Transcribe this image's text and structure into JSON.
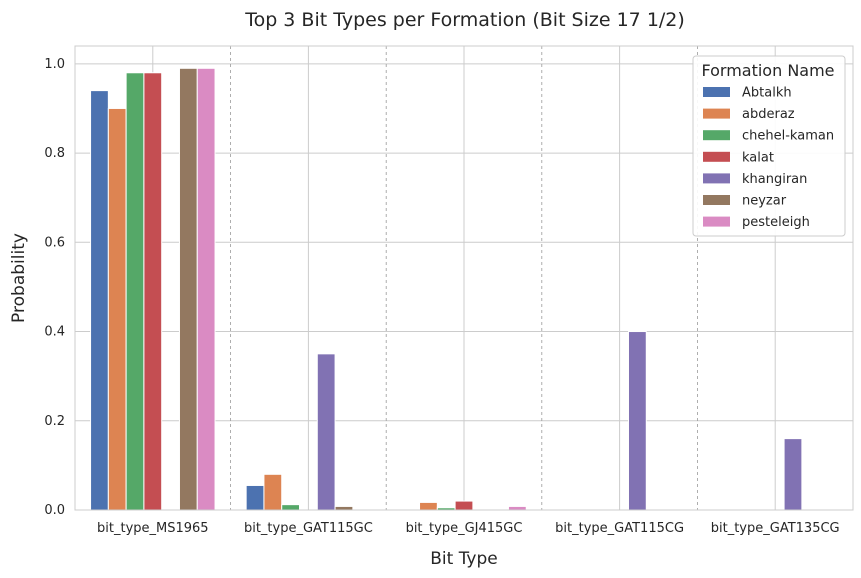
{
  "chart_data": {
    "type": "bar",
    "title": "Top 3 Bit Types per Formation (Bit Size 17 1/2)",
    "xlabel": "Bit Type",
    "ylabel": "Probability",
    "ylim": [
      0,
      1.04
    ],
    "yticks": [
      0.0,
      0.2,
      0.4,
      0.6,
      0.8,
      1.0
    ],
    "ytick_labels": [
      "0.0",
      "0.2",
      "0.4",
      "0.6",
      "0.8",
      "1.0"
    ],
    "grid": true,
    "categories": [
      "bit_type_MS1965",
      "bit_type_GAT115GC",
      "bit_type_GJ415GC",
      "bit_type_GAT115CG",
      "bit_type_GAT135CG"
    ],
    "legend": {
      "title": "Formation Name",
      "placement": "top-right"
    },
    "series": [
      {
        "name": "Abtalkh",
        "color": "#4c72b0",
        "values": [
          0.94,
          0.055,
          0.0,
          0.0,
          0.0
        ]
      },
      {
        "name": "abderaz",
        "color": "#dd8452",
        "values": [
          0.9,
          0.08,
          0.017,
          0.0,
          0.0
        ]
      },
      {
        "name": "chehel-kaman",
        "color": "#55a868",
        "values": [
          0.98,
          0.012,
          0.005,
          0.0,
          0.0
        ]
      },
      {
        "name": "kalat",
        "color": "#c44e52",
        "values": [
          0.98,
          0.0,
          0.02,
          0.0,
          0.0
        ]
      },
      {
        "name": "khangiran",
        "color": "#8172b3",
        "values": [
          0.0,
          0.35,
          0.0,
          0.4,
          0.16
        ]
      },
      {
        "name": "neyzar",
        "color": "#937860",
        "values": [
          0.99,
          0.008,
          0.0,
          0.0,
          0.0
        ]
      },
      {
        "name": "pesteleigh",
        "color": "#da8bc3",
        "values": [
          0.99,
          0.0,
          0.008,
          0.0,
          0.0
        ]
      }
    ]
  }
}
